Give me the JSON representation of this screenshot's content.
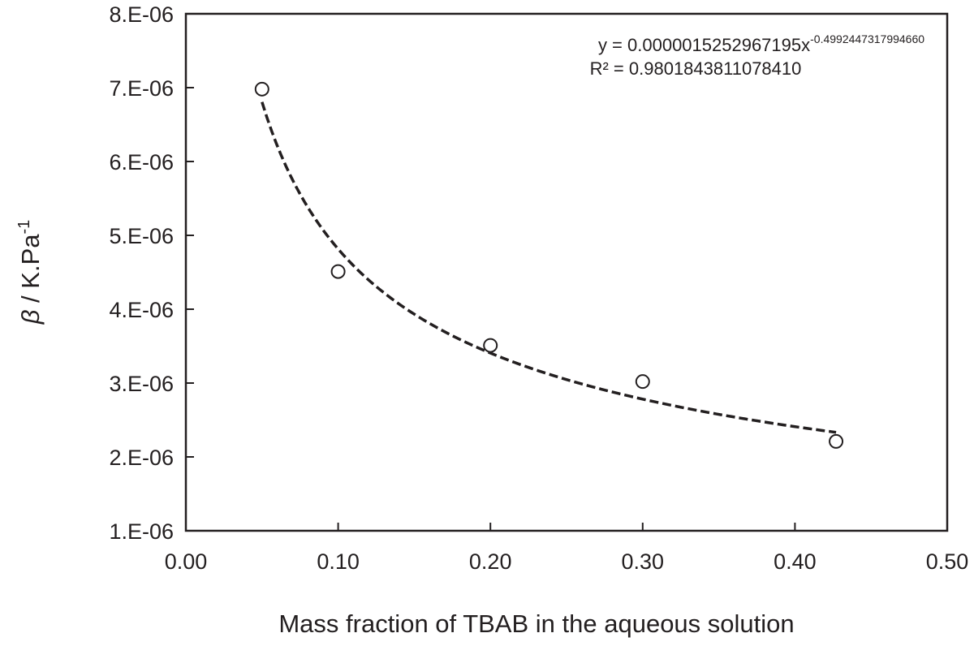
{
  "chart_data": {
    "type": "scatter",
    "xlabel": "Mass fraction of TBAB in the aqueous solution",
    "ylabel": {
      "symbol": "β",
      "text": " / K.Pa",
      "superscript": "-1"
    },
    "xlim": [
      0.0,
      0.5
    ],
    "ylim": [
      1e-06,
      8e-06
    ],
    "x_ticks": [
      0.0,
      0.1,
      0.2,
      0.3,
      0.4,
      0.5
    ],
    "x_tick_labels": [
      "0.00",
      "0.10",
      "0.20",
      "0.30",
      "0.40",
      "0.50"
    ],
    "y_ticks": [
      1e-06,
      2e-06,
      3e-06,
      4e-06,
      5e-06,
      6e-06,
      7e-06,
      8e-06
    ],
    "y_tick_labels": [
      "1.E-06",
      "2.E-06",
      "3.E-06",
      "4.E-06",
      "5.E-06",
      "6.E-06",
      "7.E-06",
      "8.E-06"
    ],
    "grid": false,
    "series": [
      {
        "marker": "open-circle",
        "points": [
          {
            "x": 0.05,
            "y": 6.98e-06
          },
          {
            "x": 0.1,
            "y": 4.51e-06
          },
          {
            "x": 0.2,
            "y": 3.51e-06
          },
          {
            "x": 0.3,
            "y": 3.02e-06
          },
          {
            "x": 0.427,
            "y": 2.21e-06
          }
        ]
      }
    ],
    "trendline": {
      "type": "power",
      "style": "dashed",
      "coefficient": 1.5252967195e-06,
      "exponent": -0.499244731799466,
      "x_range": [
        0.05,
        0.427
      ],
      "equation_text": {
        "lhs": "y = 0.0000015252967195x",
        "exponent": "-0.4992447317994660"
      },
      "r2_text": "R² = 0.9801843811078410"
    }
  }
}
